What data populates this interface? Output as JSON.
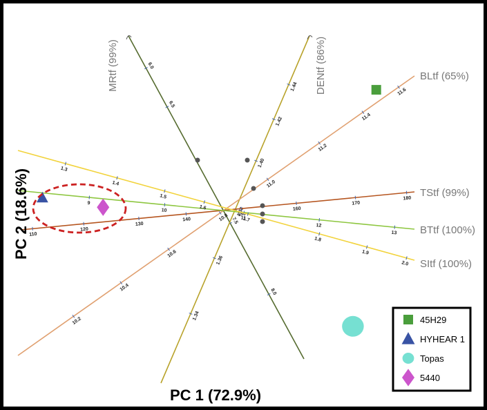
{
  "chart_data": {
    "type": "scatter",
    "xlabel": "PC 1 (72.9%)",
    "ylabel": "PC 2 (18.6%)",
    "colors": {
      "MRtf": "#556b2f",
      "DENtf": "#b8a22a",
      "BLtf": "#e0a070",
      "TStf": "#b5541e",
      "BTtf": "#8dc63f",
      "SItf": "#f2d33c",
      "circle": "#cc2222",
      "centroid": "#555555"
    },
    "biplot_axes": [
      {
        "name": "MRtf (99%)",
        "key": "MRtf",
        "ticks": [
          {
            "label": "8.0",
            "t": 0.2
          },
          {
            "label": "7.5",
            "t": 0.42
          },
          {
            "label": "6.5",
            "t": 0.78
          },
          {
            "label": "6.0",
            "t": 0.9
          }
        ]
      },
      {
        "name": "DENtf (86%)",
        "key": "DENtf",
        "ticks": [
          {
            "label": "1.44",
            "t": 0.86
          },
          {
            "label": "1.42",
            "t": 0.76
          },
          {
            "label": "1.40",
            "t": 0.64
          },
          {
            "label": "1.38",
            "t": 0.5
          },
          {
            "label": "1.36",
            "t": 0.36
          },
          {
            "label": "1.34",
            "t": 0.2
          }
        ]
      },
      {
        "name": "BLtf (65%)",
        "key": "BLtf",
        "ticks": [
          {
            "label": "11.6",
            "t": 0.96
          },
          {
            "label": "11.4",
            "t": 0.87
          },
          {
            "label": "11.2",
            "t": 0.76
          },
          {
            "label": "11.0",
            "t": 0.63
          },
          {
            "label": "10.8",
            "t": 0.51
          },
          {
            "label": "10.6",
            "t": 0.38
          },
          {
            "label": "10.4",
            "t": 0.26
          },
          {
            "label": "10.2",
            "t": 0.14
          }
        ]
      },
      {
        "name": "TStf (99%)",
        "key": "TStf",
        "ticks": [
          {
            "label": "180",
            "t": 0.98
          },
          {
            "label": "170",
            "t": 0.85
          },
          {
            "label": "160",
            "t": 0.7
          },
          {
            "label": "150",
            "t": 0.56
          },
          {
            "label": "140",
            "t": 0.42
          },
          {
            "label": "130",
            "t": 0.3
          },
          {
            "label": "120",
            "t": 0.16
          },
          {
            "label": "110",
            "t": 0.03
          }
        ]
      },
      {
        "name": "BTtf (100%)",
        "key": "BTtf",
        "ticks": [
          {
            "label": "13",
            "t": 0.95
          },
          {
            "label": "12",
            "t": 0.76
          },
          {
            "label": "11",
            "t": 0.57
          },
          {
            "label": "10",
            "t": 0.37
          },
          {
            "label": "9",
            "t": 0.18
          }
        ]
      },
      {
        "name": "SItf (100%)",
        "key": "SItf",
        "ticks": [
          {
            "label": "2.0",
            "t": 0.98
          },
          {
            "label": "1.9",
            "t": 0.88
          },
          {
            "label": "1.8",
            "t": 0.76
          },
          {
            "label": "1.7",
            "t": 0.58
          },
          {
            "label": "1.6",
            "t": 0.47
          },
          {
            "label": "1.5",
            "t": 0.37
          },
          {
            "label": "1.4",
            "t": 0.25
          },
          {
            "label": "1.3",
            "t": 0.12
          }
        ]
      }
    ],
    "points": [
      {
        "name": "45H29",
        "shape": "square",
        "color": "#4a9e3c",
        "x": 0.65,
        "y": 0.73
      },
      {
        "name": "HYHEAR 1",
        "shape": "triangle",
        "color": "#3953a4",
        "x": -0.78,
        "y": 0.05
      },
      {
        "name": "Topas",
        "shape": "circle",
        "color": "#76e0d2",
        "x": 0.55,
        "y": -0.76
      },
      {
        "name": "5440",
        "shape": "diamond",
        "color": "#cc55cc",
        "x": -0.52,
        "y": -0.01
      }
    ],
    "legend": {
      "position": "bottom-right",
      "items": [
        {
          "label": "45H29",
          "shape": "square",
          "color": "#4a9e3c"
        },
        {
          "label": "HYHEAR 1",
          "shape": "triangle",
          "color": "#3953a4"
        },
        {
          "label": "Topas",
          "shape": "circle",
          "color": "#76e0d2"
        },
        {
          "label": "5440",
          "shape": "diamond",
          "color": "#cc55cc"
        }
      ]
    },
    "grid": false
  }
}
